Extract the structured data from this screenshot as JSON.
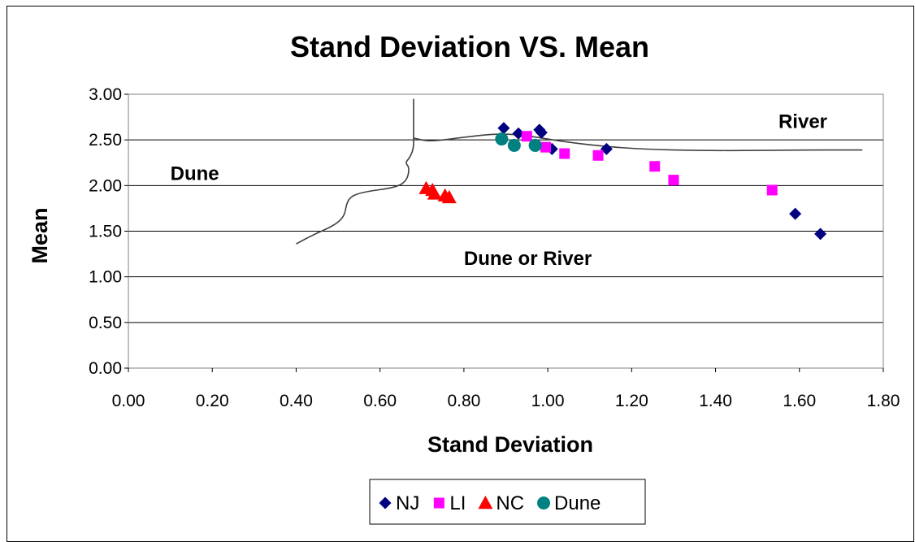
{
  "chart_data": {
    "type": "scatter",
    "title": "Stand  Deviation VS. Mean",
    "xlabel": "Stand Deviation",
    "ylabel": "Mean",
    "xlim": [
      0,
      1.8
    ],
    "ylim": [
      0,
      3.0
    ],
    "x_ticks": [
      "0.00",
      "0.20",
      "0.40",
      "0.60",
      "0.80",
      "1.00",
      "1.20",
      "1.40",
      "1.60",
      "1.80"
    ],
    "y_ticks": [
      "0.00",
      "0.50",
      "1.00",
      "1.50",
      "2.00",
      "2.50",
      "3.00"
    ],
    "grid": "horizontal",
    "legend_position": "bottom",
    "series": [
      {
        "name": "NJ",
        "marker": "diamond",
        "color": "#000080",
        "points": [
          [
            0.895,
            2.63
          ],
          [
            0.93,
            2.57
          ],
          [
            0.98,
            2.61
          ],
          [
            0.985,
            2.58
          ],
          [
            1.01,
            2.4
          ],
          [
            1.14,
            2.4
          ],
          [
            1.59,
            1.69
          ],
          [
            1.65,
            1.47
          ]
        ]
      },
      {
        "name": "LI",
        "marker": "square",
        "color": "#ff00ff",
        "points": [
          [
            0.95,
            2.54
          ],
          [
            0.995,
            2.42
          ],
          [
            1.04,
            2.35
          ],
          [
            1.12,
            2.33
          ],
          [
            1.255,
            2.21
          ],
          [
            1.3,
            2.06
          ],
          [
            1.535,
            1.95
          ]
        ]
      },
      {
        "name": "NC",
        "marker": "triangle",
        "color": "#ff0000",
        "points": [
          [
            0.71,
            1.97
          ],
          [
            0.725,
            1.95
          ],
          [
            0.73,
            1.91
          ],
          [
            0.755,
            1.89
          ],
          [
            0.765,
            1.87
          ]
        ]
      },
      {
        "name": "Dune",
        "marker": "circle",
        "color": "#008080",
        "points": [
          [
            0.89,
            2.51
          ],
          [
            0.92,
            2.44
          ],
          [
            0.97,
            2.44
          ]
        ]
      }
    ],
    "boundary_lines": [
      {
        "points": [
          [
            0.4,
            1.36
          ],
          [
            0.44,
            1.46
          ],
          [
            0.49,
            1.56
          ],
          [
            0.515,
            1.66
          ],
          [
            0.52,
            1.8
          ],
          [
            0.53,
            1.88
          ],
          [
            0.56,
            1.93
          ],
          [
            0.64,
            1.98
          ],
          [
            0.665,
            2.06
          ],
          [
            0.67,
            2.2
          ],
          [
            0.66,
            2.25
          ],
          [
            0.67,
            2.3
          ],
          [
            0.68,
            2.4
          ],
          [
            0.68,
            2.55
          ],
          [
            0.68,
            2.95
          ]
        ]
      },
      {
        "points": [
          [
            0.68,
            2.52
          ],
          [
            0.72,
            2.48
          ],
          [
            0.8,
            2.53
          ],
          [
            0.88,
            2.57
          ],
          [
            0.95,
            2.55
          ],
          [
            1.05,
            2.47
          ],
          [
            1.2,
            2.4
          ],
          [
            1.4,
            2.38
          ],
          [
            1.6,
            2.39
          ],
          [
            1.75,
            2.39
          ]
        ]
      }
    ],
    "annotations": [
      {
        "text": "River",
        "x": 1.55,
        "y": 2.7
      },
      {
        "text": "Dune",
        "x": 0.1,
        "y": 2.13
      },
      {
        "text": "Dune or River",
        "x": 0.8,
        "y": 1.2
      }
    ]
  }
}
